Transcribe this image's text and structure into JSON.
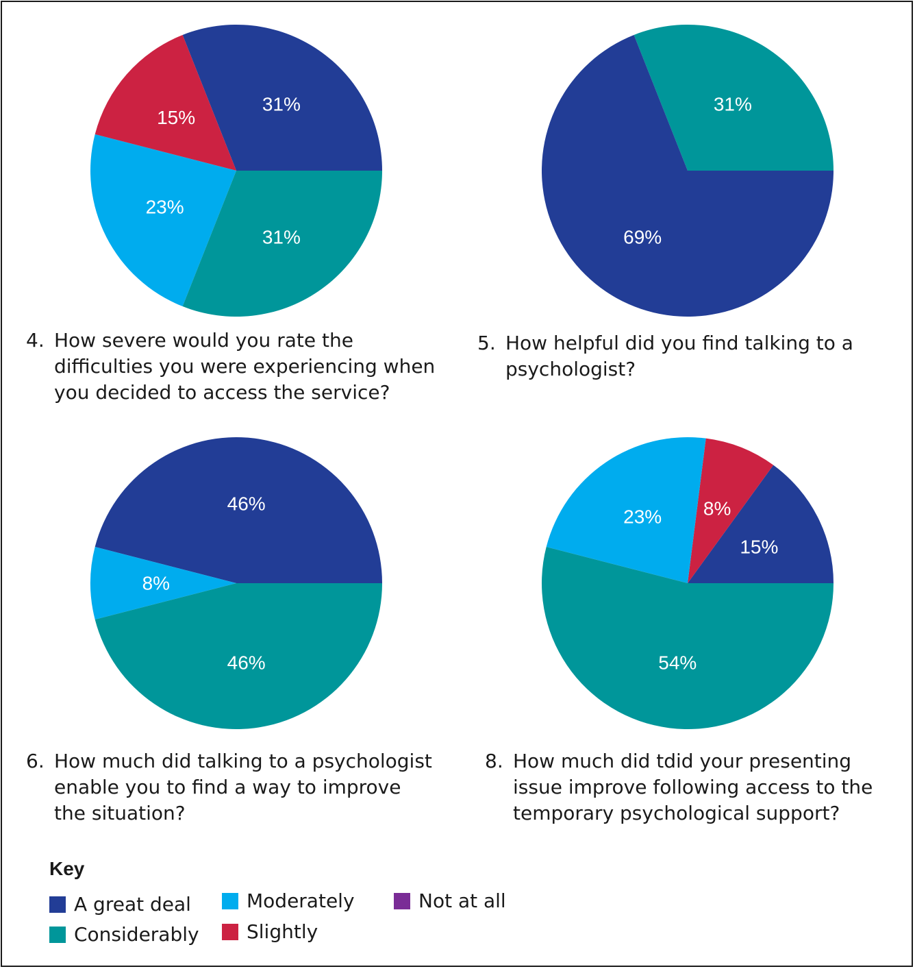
{
  "colors": {
    "a_great_deal": "#223d96",
    "considerably": "#00969a",
    "moderately": "#00acee",
    "slightly": "#cc2242",
    "not_at_all": "#7a2c96"
  },
  "chart_data": [
    {
      "type": "pie",
      "number": "4.",
      "title_lines": [
        "How severe would you rate the",
        "difficulties you were experiencing when",
        "you decided to access the service?"
      ],
      "slices": [
        {
          "category": "A great deal",
          "value": 31,
          "label": "31%",
          "color": "#223d96"
        },
        {
          "category": "Slightly",
          "value": 15,
          "label": "15%",
          "color": "#cc2242"
        },
        {
          "category": "Moderately",
          "value": 23,
          "label": "23%",
          "color": "#00acee"
        },
        {
          "category": "Considerably",
          "value": 31,
          "label": "31%",
          "color": "#00969a"
        }
      ]
    },
    {
      "type": "pie",
      "number": "5.",
      "title_lines": [
        "How helpful did you find talking to a",
        "psychologist?"
      ],
      "slices": [
        {
          "category": "Considerably",
          "value": 31,
          "label": "31%",
          "color": "#00969a"
        },
        {
          "category": "A great deal",
          "value": 69,
          "label": "69%",
          "color": "#223d96"
        }
      ]
    },
    {
      "type": "pie",
      "number": "6.",
      "title_lines": [
        "How much did talking to a psychologist",
        "enable you to find a way to improve",
        "the situation?"
      ],
      "slices": [
        {
          "category": "A great deal",
          "value": 46,
          "label": "46%",
          "color": "#223d96"
        },
        {
          "category": "Moderately",
          "value": 8,
          "label": "8%",
          "color": "#00acee"
        },
        {
          "category": "Considerably",
          "value": 46,
          "label": "46%",
          "color": "#00969a"
        }
      ]
    },
    {
      "type": "pie",
      "number": "8.",
      "title_lines": [
        "How much did tdid your presenting",
        "issue improve following access to the",
        "temporary psychological support?"
      ],
      "slices": [
        {
          "category": "A great deal",
          "value": 15,
          "label": "15%",
          "color": "#223d96"
        },
        {
          "category": "Slightly",
          "value": 8,
          "label": "8%",
          "color": "#cc2242"
        },
        {
          "category": "Moderately",
          "value": 23,
          "label": "23%",
          "color": "#00acee"
        },
        {
          "category": "Considerably",
          "value": 54,
          "label": "54%",
          "color": "#00969a"
        }
      ]
    }
  ],
  "legend": {
    "title": "Key",
    "items": [
      {
        "label": "A great deal",
        "color": "#223d96"
      },
      {
        "label": "Considerably",
        "color": "#00969a"
      },
      {
        "label": "Moderately",
        "color": "#00acee"
      },
      {
        "label": "Slightly",
        "color": "#cc2242"
      },
      {
        "label": "Not at all",
        "color": "#7a2c96"
      }
    ]
  }
}
